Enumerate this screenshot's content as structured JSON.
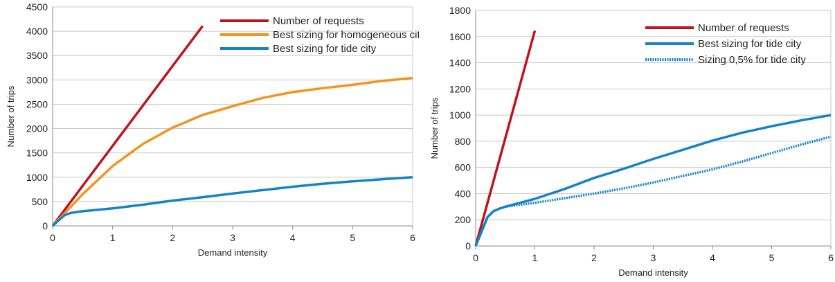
{
  "colors": {
    "requests": "#c0121c",
    "homogeneous": "#f6921e",
    "tide": "#1483c8",
    "grid": "#c8c8c8"
  },
  "chart_data": [
    {
      "type": "line",
      "xlabel": "Demand intensity",
      "ylabel": "Number of trips",
      "xlim": [
        0,
        6
      ],
      "ylim": [
        0,
        4500
      ],
      "xticks": [
        0,
        1,
        2,
        3,
        4,
        5,
        6
      ],
      "yticks": [
        0,
        500,
        1000,
        1500,
        2000,
        2500,
        3000,
        3500,
        4000,
        4500
      ],
      "grid": true,
      "legend_position": "top-right",
      "series": [
        {
          "name": "Number of requests",
          "color": "#c0121c",
          "style": "solid",
          "x": [
            0,
            2.5
          ],
          "y": [
            0,
            4110
          ]
        },
        {
          "name": "Best sizing for homogeneous city",
          "color": "#f6921e",
          "style": "solid",
          "x": [
            0,
            0.5,
            1,
            1.5,
            2,
            2.5,
            3,
            3.5,
            4,
            4.5,
            5,
            5.5,
            6
          ],
          "y": [
            0,
            650,
            1230,
            1680,
            2020,
            2280,
            2460,
            2630,
            2750,
            2830,
            2900,
            2980,
            3040
          ]
        },
        {
          "name": "Best sizing for tide city",
          "color": "#1483c8",
          "style": "solid",
          "x": [
            0,
            0.2,
            0.3,
            0.4,
            0.5,
            1,
            1.5,
            2,
            2.5,
            3,
            3.5,
            4,
            4.5,
            5,
            5.5,
            6
          ],
          "y": [
            0,
            220,
            265,
            285,
            300,
            360,
            435,
            520,
            590,
            665,
            735,
            805,
            865,
            915,
            960,
            1000
          ]
        }
      ]
    },
    {
      "type": "line",
      "xlabel": "Demand intensity",
      "ylabel": "Number of trips",
      "xlim": [
        0,
        6
      ],
      "ylim": [
        0,
        1800
      ],
      "xticks": [
        0,
        1,
        2,
        3,
        4,
        5,
        6
      ],
      "yticks": [
        0,
        200,
        400,
        600,
        800,
        1000,
        1200,
        1400,
        1600,
        1800
      ],
      "grid": true,
      "legend_position": "top-right",
      "series": [
        {
          "name": "Number of requests",
          "color": "#c0121c",
          "style": "solid",
          "x": [
            0,
            1
          ],
          "y": [
            0,
            1645
          ]
        },
        {
          "name": "Best sizing for tide city",
          "color": "#1483c8",
          "style": "solid",
          "x": [
            0,
            0.2,
            0.3,
            0.4,
            0.5,
            1,
            1.5,
            2,
            2.5,
            3,
            3.5,
            4,
            4.5,
            5,
            5.5,
            6
          ],
          "y": [
            0,
            220,
            265,
            285,
            300,
            360,
            435,
            520,
            590,
            665,
            735,
            805,
            865,
            915,
            960,
            1000
          ]
        },
        {
          "name": "Sizing 0,5% for tide city",
          "color": "#1483c8",
          "style": "dotted",
          "x": [
            0,
            0.2,
            0.3,
            0.4,
            0.5,
            1,
            1.5,
            2,
            2.5,
            3,
            3.5,
            4,
            4.5,
            5,
            5.5,
            6
          ],
          "y": [
            0,
            220,
            265,
            285,
            300,
            330,
            365,
            400,
            440,
            485,
            535,
            585,
            645,
            710,
            775,
            835
          ]
        }
      ]
    }
  ]
}
